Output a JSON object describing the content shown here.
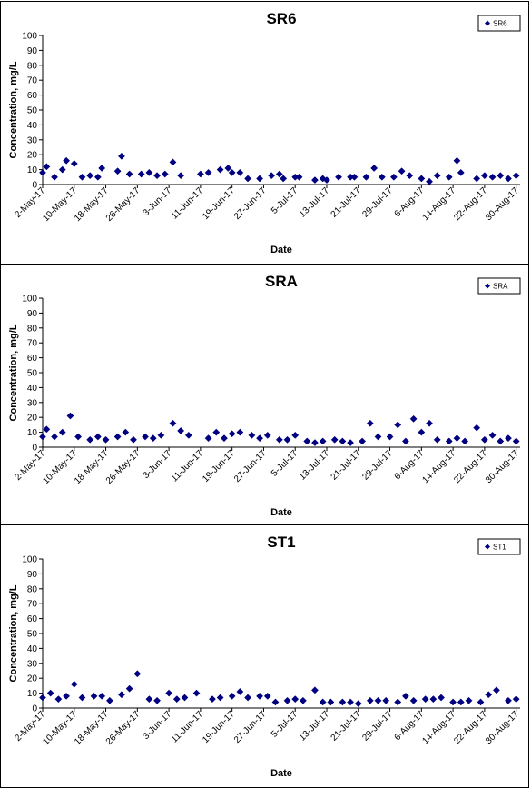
{
  "chart_data": [
    {
      "type": "scatter",
      "title": "SR6",
      "xlabel": "Date",
      "ylabel": "Concentration, mg/L",
      "ylim": [
        0,
        100
      ],
      "yticks": [
        0,
        10,
        20,
        30,
        40,
        50,
        60,
        70,
        80,
        90,
        100
      ],
      "xlim": [
        "2017-05-02",
        "2017-08-31"
      ],
      "xtick_labels": [
        "2-May-17",
        "10-May-17",
        "18-May-17",
        "26-May-17",
        "3-Jun-17",
        "11-Jun-17",
        "19-Jun-17",
        "27-Jun-17",
        "5-Jul-17",
        "13-Jul-17",
        "21-Jul-17",
        "29-Jul-17",
        "6-Aug-17",
        "14-Aug-17",
        "22-Aug-17",
        "30-Aug-17"
      ],
      "xtick_dates": [
        "2017-05-02",
        "2017-05-10",
        "2017-05-18",
        "2017-05-26",
        "2017-06-03",
        "2017-06-11",
        "2017-06-19",
        "2017-06-27",
        "2017-07-05",
        "2017-07-13",
        "2017-07-21",
        "2017-07-29",
        "2017-08-06",
        "2017-08-14",
        "2017-08-22",
        "2017-08-30"
      ],
      "legend": {
        "position": "top-right",
        "entries": [
          "SR6"
        ]
      },
      "series": [
        {
          "name": "SR6",
          "color": "#000080",
          "marker": "diamond",
          "x": [
            "2017-05-02",
            "2017-05-03",
            "2017-05-05",
            "2017-05-07",
            "2017-05-08",
            "2017-05-10",
            "2017-05-12",
            "2017-05-14",
            "2017-05-16",
            "2017-05-17",
            "2017-05-21",
            "2017-05-22",
            "2017-05-24",
            "2017-05-27",
            "2017-05-29",
            "2017-05-31",
            "2017-06-02",
            "2017-06-04",
            "2017-06-06",
            "2017-06-11",
            "2017-06-13",
            "2017-06-16",
            "2017-06-18",
            "2017-06-19",
            "2017-06-21",
            "2017-06-23",
            "2017-06-26",
            "2017-06-29",
            "2017-07-01",
            "2017-07-02",
            "2017-07-05",
            "2017-07-06",
            "2017-07-10",
            "2017-07-12",
            "2017-07-13",
            "2017-07-16",
            "2017-07-19",
            "2017-07-20",
            "2017-07-23",
            "2017-07-25",
            "2017-07-27",
            "2017-07-30",
            "2017-08-01",
            "2017-08-03",
            "2017-08-06",
            "2017-08-08",
            "2017-08-10",
            "2017-08-13",
            "2017-08-15",
            "2017-08-16",
            "2017-08-20",
            "2017-08-22",
            "2017-08-24",
            "2017-08-26",
            "2017-08-28",
            "2017-08-30"
          ],
          "y": [
            8,
            12,
            5,
            10,
            16,
            14,
            5,
            6,
            5,
            11,
            9,
            19,
            7,
            7,
            8,
            6,
            7,
            15,
            6,
            7,
            8,
            10,
            11,
            8,
            8,
            4,
            4,
            6,
            7,
            4,
            5,
            5,
            3,
            4,
            3,
            5,
            5,
            5,
            5,
            11,
            5,
            5,
            9,
            6,
            4,
            2,
            6,
            5,
            16,
            8,
            4,
            6,
            5,
            6,
            4,
            6
          ]
        }
      ]
    },
    {
      "type": "scatter",
      "title": "SRA",
      "xlabel": "Date",
      "ylabel": "Concentration, mg/L",
      "ylim": [
        0,
        100
      ],
      "yticks": [
        0,
        10,
        20,
        30,
        40,
        50,
        60,
        70,
        80,
        90,
        100
      ],
      "xlim": [
        "2017-05-02",
        "2017-08-31"
      ],
      "xtick_labels": [
        "2-May-17",
        "10-May-17",
        "18-May-17",
        "26-May-17",
        "3-Jun-17",
        "11-Jun-17",
        "19-Jun-17",
        "27-Jun-17",
        "5-Jul-17",
        "13-Jul-17",
        "21-Jul-17",
        "29-Jul-17",
        "6-Aug-17",
        "14-Aug-17",
        "22-Aug-17",
        "30-Aug-17"
      ],
      "xtick_dates": [
        "2017-05-02",
        "2017-05-10",
        "2017-05-18",
        "2017-05-26",
        "2017-06-03",
        "2017-06-11",
        "2017-06-19",
        "2017-06-27",
        "2017-07-05",
        "2017-07-13",
        "2017-07-21",
        "2017-07-29",
        "2017-08-06",
        "2017-08-14",
        "2017-08-22",
        "2017-08-30"
      ],
      "legend": {
        "position": "top-right",
        "entries": [
          "SRA"
        ]
      },
      "series": [
        {
          "name": "SRA",
          "color": "#000080",
          "marker": "diamond",
          "x": [
            "2017-05-02",
            "2017-05-03",
            "2017-05-05",
            "2017-05-07",
            "2017-05-09",
            "2017-05-11",
            "2017-05-14",
            "2017-05-16",
            "2017-05-18",
            "2017-05-21",
            "2017-05-23",
            "2017-05-25",
            "2017-05-28",
            "2017-05-30",
            "2017-06-01",
            "2017-06-04",
            "2017-06-06",
            "2017-06-08",
            "2017-06-13",
            "2017-06-15",
            "2017-06-17",
            "2017-06-19",
            "2017-06-21",
            "2017-06-24",
            "2017-06-26",
            "2017-06-28",
            "2017-07-01",
            "2017-07-03",
            "2017-07-05",
            "2017-07-08",
            "2017-07-10",
            "2017-07-12",
            "2017-07-15",
            "2017-07-17",
            "2017-07-19",
            "2017-07-22",
            "2017-07-24",
            "2017-07-26",
            "2017-07-29",
            "2017-07-31",
            "2017-08-02",
            "2017-08-04",
            "2017-08-06",
            "2017-08-08",
            "2017-08-10",
            "2017-08-13",
            "2017-08-15",
            "2017-08-17",
            "2017-08-20",
            "2017-08-22",
            "2017-08-24",
            "2017-08-26",
            "2017-08-28",
            "2017-08-30"
          ],
          "y": [
            7,
            12,
            7,
            10,
            21,
            7,
            5,
            7,
            5,
            7,
            10,
            5,
            7,
            6,
            8,
            16,
            11,
            8,
            6,
            10,
            6,
            9,
            10,
            8,
            6,
            8,
            5,
            5,
            8,
            4,
            3,
            4,
            5,
            4,
            3,
            4,
            16,
            7,
            7,
            15,
            4,
            19,
            10,
            16,
            5,
            4,
            6,
            4,
            13,
            5,
            8,
            4,
            6,
            4
          ]
        }
      ]
    },
    {
      "type": "scatter",
      "title": "ST1",
      "xlabel": "Date",
      "ylabel": "Concentration, mg/L",
      "ylim": [
        0,
        100
      ],
      "yticks": [
        0,
        10,
        20,
        30,
        40,
        50,
        60,
        70,
        80,
        90,
        100
      ],
      "xlim": [
        "2017-05-02",
        "2017-08-31"
      ],
      "xtick_labels": [
        "2-May-17",
        "10-May-17",
        "18-May-17",
        "26-May-17",
        "3-Jun-17",
        "11-Jun-17",
        "19-Jun-17",
        "27-Jun-17",
        "5-Jul-17",
        "13-Jul-17",
        "21-Jul-17",
        "29-Jul-17",
        "6-Aug-17",
        "14-Aug-17",
        "22-Aug-17",
        "30-Aug-17"
      ],
      "xtick_dates": [
        "2017-05-02",
        "2017-05-10",
        "2017-05-18",
        "2017-05-26",
        "2017-06-03",
        "2017-06-11",
        "2017-06-19",
        "2017-06-27",
        "2017-07-05",
        "2017-07-13",
        "2017-07-21",
        "2017-07-29",
        "2017-08-06",
        "2017-08-14",
        "2017-08-22",
        "2017-08-30"
      ],
      "legend": {
        "position": "top-right",
        "entries": [
          "ST1"
        ]
      },
      "series": [
        {
          "name": "ST1",
          "color": "#000080",
          "marker": "diamond",
          "x": [
            "2017-05-02",
            "2017-05-04",
            "2017-05-06",
            "2017-05-08",
            "2017-05-10",
            "2017-05-12",
            "2017-05-15",
            "2017-05-17",
            "2017-05-19",
            "2017-05-22",
            "2017-05-24",
            "2017-05-26",
            "2017-05-29",
            "2017-05-31",
            "2017-06-03",
            "2017-06-05",
            "2017-06-07",
            "2017-06-10",
            "2017-06-14",
            "2017-06-16",
            "2017-06-19",
            "2017-06-21",
            "2017-06-23",
            "2017-06-26",
            "2017-06-28",
            "2017-06-30",
            "2017-07-03",
            "2017-07-05",
            "2017-07-07",
            "2017-07-10",
            "2017-07-12",
            "2017-07-14",
            "2017-07-17",
            "2017-07-19",
            "2017-07-21",
            "2017-07-24",
            "2017-07-26",
            "2017-07-28",
            "2017-07-31",
            "2017-08-02",
            "2017-08-04",
            "2017-08-07",
            "2017-08-09",
            "2017-08-11",
            "2017-08-14",
            "2017-08-16",
            "2017-08-18",
            "2017-08-21",
            "2017-08-23",
            "2017-08-25",
            "2017-08-28",
            "2017-08-30"
          ],
          "y": [
            7,
            10,
            6,
            8,
            16,
            7,
            8,
            8,
            5,
            9,
            13,
            23,
            6,
            5,
            10,
            6,
            7,
            10,
            6,
            7,
            8,
            11,
            7,
            8,
            8,
            4,
            5,
            6,
            5,
            12,
            4,
            4,
            4,
            4,
            3,
            5,
            5,
            5,
            4,
            8,
            5,
            6,
            6,
            7,
            4,
            4,
            5,
            4,
            9,
            12,
            5,
            6
          ]
        }
      ]
    }
  ]
}
